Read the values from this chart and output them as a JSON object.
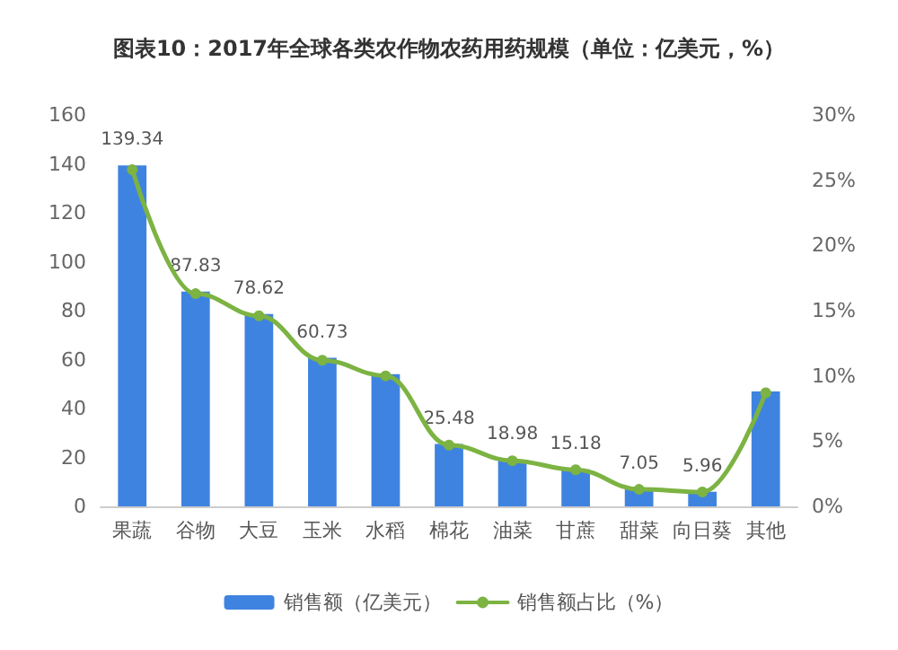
{
  "chart_data": {
    "type": "bar",
    "title": "图表10：2017年全球各类农作物农药用药规模（单位：亿美元，%）",
    "categories": [
      "果蔬",
      "谷物",
      "大豆",
      "玉米",
      "水稻",
      "棉花",
      "油菜",
      "甘蔗",
      "甜菜",
      "向日葵",
      "其他"
    ],
    "series": [
      {
        "name": "销售额（亿美元）",
        "color": "#3f83e0",
        "values": [
          139.34,
          87.83,
          78.62,
          60.73,
          54,
          25.48,
          18.98,
          15.18,
          7.05,
          5.96,
          47
        ],
        "value_labels": [
          "139.34",
          "87.83",
          "78.62",
          "60.73",
          null,
          "25.48",
          "18.98",
          "15.18",
          "7.05",
          "5.96",
          null
        ]
      },
      {
        "name": "销售额占比（%）",
        "type": "line",
        "axis": "y2",
        "color": "#7cb342",
        "marker": "circle",
        "values": [
          25.8,
          16.3,
          14.6,
          11.2,
          10.0,
          4.7,
          3.5,
          2.8,
          1.3,
          1.1,
          8.7
        ]
      }
    ],
    "ylim": [
      0,
      160
    ],
    "yticks": [
      0,
      20,
      40,
      60,
      80,
      100,
      120,
      140,
      160
    ],
    "y2lim": [
      0,
      30
    ],
    "y2ticks": [
      {
        "value": 0,
        "label": "0%"
      },
      {
        "value": 5,
        "label": "5%"
      },
      {
        "value": 10,
        "label": "10%"
      },
      {
        "value": 15,
        "label": "15%"
      },
      {
        "value": 20,
        "label": "20%"
      },
      {
        "value": 25,
        "label": "25%"
      },
      {
        "value": 30,
        "label": "30%"
      }
    ],
    "grid": false,
    "legend": "bottom"
  }
}
